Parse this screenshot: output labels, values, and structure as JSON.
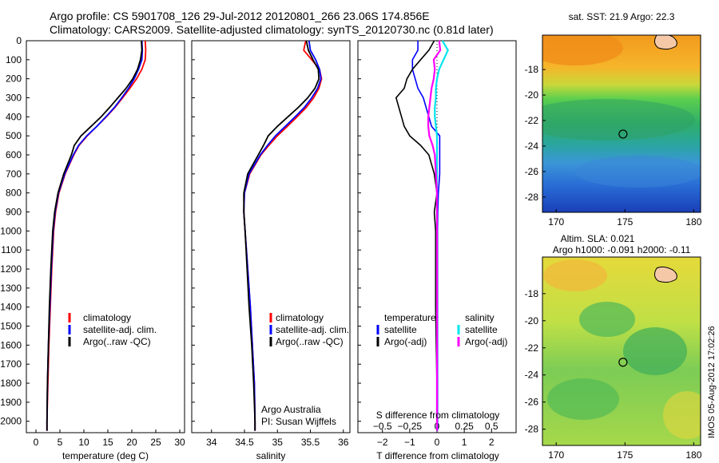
{
  "title": {
    "line1": "Argo profile: CS 5901708_126 29-Jul-2012 20120801_266 23.06S 174.856E",
    "line2": "Climatology: CARS2009. Satellite-adjusted climatology: synTS_20120730.nc (0.81d later)"
  },
  "colors": {
    "climatology": "#ff0000",
    "satellite": "#0000ff",
    "argo": "#000000",
    "sal_satellite": "#00e5ee",
    "sal_argo": "#ff00ff"
  },
  "depth_ticks": [
    "0",
    "100",
    "200",
    "300",
    "400",
    "500",
    "600",
    "700",
    "800",
    "900",
    "1000",
    "1100",
    "1200",
    "1300",
    "1400",
    "1500",
    "1600",
    "1700",
    "1800",
    "1900",
    "2000"
  ],
  "depth_values": [
    0,
    100,
    200,
    300,
    400,
    500,
    600,
    700,
    800,
    900,
    1000,
    1100,
    1200,
    1300,
    1400,
    1500,
    1600,
    1700,
    1800,
    1900,
    2000
  ],
  "chart_data": [
    {
      "type": "line",
      "name": "temperature",
      "xlabel": "temperature (deg C)",
      "xlim": [
        -2,
        31
      ],
      "ylim": [
        2060,
        0
      ],
      "xticks": [
        0,
        5,
        10,
        15,
        20,
        25,
        30
      ],
      "xtick_labels": [
        "0",
        "5",
        "10",
        "15",
        "20",
        "25",
        "30"
      ],
      "depth": [
        0,
        50,
        100,
        150,
        200,
        250,
        300,
        350,
        400,
        450,
        500,
        550,
        600,
        700,
        800,
        900,
        1000,
        1200,
        1400,
        1600,
        1800,
        2000,
        2050
      ],
      "series": [
        {
          "name": "climatology",
          "color": "#ff0000",
          "values": [
            22.8,
            22.9,
            22.8,
            22.1,
            21.0,
            19.6,
            18.1,
            16.5,
            14.7,
            12.7,
            10.7,
            9.0,
            7.9,
            6.1,
            4.8,
            4.1,
            3.7,
            3.3,
            3.0,
            2.7,
            2.5,
            2.3,
            2.3
          ]
        },
        {
          "name": "satellite-adj. clim.",
          "color": "#0000ff",
          "values": [
            22.1,
            22.2,
            22.1,
            21.4,
            20.5,
            19.3,
            17.9,
            16.4,
            14.6,
            12.7,
            10.6,
            8.9,
            7.8,
            6.0,
            4.7,
            4.0,
            3.6,
            3.2,
            2.9,
            2.6,
            2.4,
            2.3,
            2.3
          ]
        },
        {
          "name": "Argo(..raw -QC)",
          "color": "#000000",
          "values": [
            22.0,
            22.1,
            21.8,
            21.2,
            20.2,
            18.8,
            17.1,
            15.4,
            13.6,
            11.5,
            9.4,
            8.0,
            7.4,
            5.8,
            4.6,
            3.9,
            3.5,
            3.1,
            2.8,
            2.6,
            2.4,
            2.3,
            2.3
          ]
        }
      ],
      "legend": [
        "climatology",
        "satellite-adj. clim.",
        "Argo(..raw -QC)"
      ]
    },
    {
      "type": "line",
      "name": "salinity",
      "xlabel": "salinity",
      "xlim": [
        33.7,
        36.1
      ],
      "ylim": [
        2060,
        0
      ],
      "xticks": [
        34,
        34.5,
        35,
        35.5,
        36
      ],
      "xtick_labels": [
        "34",
        "34.5",
        "35",
        "35.5",
        "36"
      ],
      "depth": [
        0,
        50,
        100,
        150,
        200,
        250,
        300,
        350,
        400,
        450,
        500,
        550,
        600,
        700,
        800,
        900,
        1000,
        1200,
        1400,
        1600,
        1800,
        2000,
        2050
      ],
      "series": [
        {
          "name": "climatology",
          "color": "#ff0000",
          "values": [
            35.43,
            35.4,
            35.52,
            35.64,
            35.67,
            35.63,
            35.55,
            35.44,
            35.3,
            35.15,
            35.0,
            34.87,
            34.75,
            34.58,
            34.5,
            34.49,
            34.51,
            34.55,
            34.59,
            34.62,
            34.65,
            34.66,
            34.66
          ]
        },
        {
          "name": "satellite-adj. clim.",
          "color": "#0000ff",
          "values": [
            35.48,
            35.5,
            35.58,
            35.64,
            35.66,
            35.61,
            35.52,
            35.41,
            35.27,
            35.12,
            34.97,
            34.85,
            34.74,
            34.57,
            34.5,
            34.49,
            34.51,
            34.55,
            34.59,
            34.62,
            34.65,
            34.66,
            34.66
          ]
        },
        {
          "name": "Argo(..raw -QC)",
          "color": "#000000",
          "values": [
            35.44,
            35.47,
            35.54,
            35.62,
            35.63,
            35.57,
            35.46,
            35.32,
            35.16,
            35.0,
            34.86,
            34.79,
            34.71,
            34.55,
            34.49,
            34.49,
            34.51,
            34.54,
            34.57,
            34.61,
            34.64,
            34.66,
            34.66
          ]
        }
      ],
      "legend": [
        "climatology",
        "satellite-adj. clim.",
        "Argo(..raw -QC)"
      ],
      "annotation": [
        "Argo Australia",
        "PI: Susan Wijffels"
      ]
    },
    {
      "type": "line",
      "name": "difference",
      "title_top": "S difference from climatology",
      "xlabel": "T difference from climatology",
      "xlim": [
        -2.9,
        2.9
      ],
      "ylim": [
        2060,
        0
      ],
      "xticks_T": [
        -2,
        -1,
        0,
        1,
        2
      ],
      "xtick_labels_T": [
        "−2",
        "−1",
        "0",
        "1",
        "2"
      ],
      "xtick_labels_S": [
        "−0.5",
        "−0.25",
        "0",
        "0.25",
        "0.5"
      ],
      "xticks_S": [
        -0.5,
        -0.25,
        0,
        0.25,
        0.5
      ],
      "S_scale": 4,
      "depth": [
        0,
        50,
        100,
        150,
        200,
        250,
        300,
        350,
        400,
        450,
        500,
        550,
        600,
        700,
        800,
        900,
        1000,
        1200,
        1400,
        1600,
        1800,
        2000,
        2050
      ],
      "series": [
        {
          "name": "temperature satellite",
          "kind": "T",
          "color": "#0000ff",
          "values": [
            -0.7,
            -0.7,
            -0.9,
            -0.9,
            -0.8,
            -0.7,
            -0.5,
            -0.4,
            -0.3,
            -0.2,
            0.1,
            0.1,
            0.1,
            0.1,
            0.05,
            0.03,
            0.02,
            0.02,
            0.02,
            0.02,
            0.02,
            0.02,
            0.02
          ]
        },
        {
          "name": "temperature Argo(-adj)",
          "kind": "T",
          "color": "#000000",
          "values": [
            -0.1,
            -0.3,
            -0.6,
            -0.9,
            -1.1,
            -1.2,
            -1.5,
            -1.4,
            -1.3,
            -1.2,
            -1.0,
            -0.6,
            -0.3,
            -0.1,
            0.0,
            -0.1,
            -0.05,
            -0.05,
            -0.05,
            -0.03,
            0.0,
            0.0,
            0.0
          ]
        },
        {
          "name": "salinity satellite",
          "kind": "S",
          "color": "#00e5ee",
          "values": [
            0.05,
            0.1,
            0.06,
            0.02,
            0.0,
            -0.01,
            -0.01,
            -0.02,
            -0.02,
            -0.01,
            0.0,
            0.0,
            0.0,
            0.0,
            0.0,
            0.0,
            0.0,
            0.0,
            0.0,
            0.0,
            0.0,
            0.0,
            0.0
          ]
        },
        {
          "name": "salinity Argo(-adj)",
          "kind": "S",
          "color": "#ff00ff",
          "values": [
            0.02,
            0.03,
            -0.03,
            -0.02,
            -0.03,
            -0.05,
            -0.06,
            -0.07,
            -0.08,
            -0.08,
            -0.07,
            -0.04,
            -0.02,
            -0.01,
            0.0,
            0.0,
            0.0,
            0.0,
            0.0,
            0.0,
            0.0,
            0.0,
            0.0
          ]
        }
      ],
      "legend_temperature": {
        "header": "temperature",
        "items": [
          "satellite",
          "Argo(-adj)"
        ]
      },
      "legend_salinity": {
        "header": "salinity",
        "items": [
          "satellite",
          "Argo(-adj)"
        ]
      }
    },
    {
      "type": "heatmap",
      "name": "sst-map",
      "title": "sat. SST: 21.9 Argo: 22.3",
      "xlim": [
        169,
        180.5
      ],
      "ylim": [
        -29.2,
        -15.3
      ],
      "xtick_labels": [
        "170",
        "175",
        "180"
      ],
      "xticks": [
        170,
        175,
        180
      ],
      "ytick_labels": [
        "-18",
        "-20",
        "-22",
        "-24",
        "-26",
        "-28"
      ],
      "yticks": [
        -18,
        -20,
        -22,
        -24,
        -26,
        -28
      ],
      "marker": {
        "lon": 174.856,
        "lat": -23.06
      }
    },
    {
      "type": "heatmap",
      "name": "sla-map",
      "title_line1": "Altim. SLA: 0.021",
      "title_line2": "Argo h1000: -0.091 h2000: -0.11",
      "xlim": [
        169,
        180.5
      ],
      "ylim": [
        -29.2,
        -15.3
      ],
      "xtick_labels": [
        "170",
        "175",
        "180"
      ],
      "xticks": [
        170,
        175,
        180
      ],
      "ytick_labels": [
        "-18",
        "-20",
        "-22",
        "-24",
        "-26",
        "-28"
      ],
      "yticks": [
        -18,
        -20,
        -22,
        -24,
        -26,
        -28
      ],
      "marker": {
        "lon": 174.856,
        "lat": -23.06
      }
    }
  ],
  "footer_stamp": "IMOS 05-Aug-2012 17:02:26"
}
